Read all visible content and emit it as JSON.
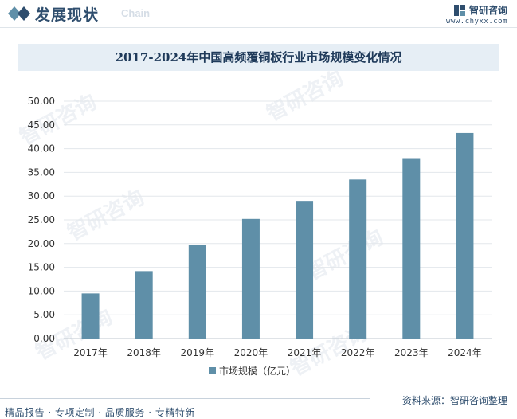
{
  "header": {
    "title": "发展现状",
    "subtitle": "Chain",
    "brand_name": "智研咨询",
    "brand_url": "www.chyxx.com"
  },
  "watermark_text": "智研咨询",
  "chart_data": {
    "type": "bar",
    "title": "2017-2024年中国高频覆铜板行业市场规模变化情况",
    "categories": [
      "2017年",
      "2018年",
      "2019年",
      "2020年",
      "2021年",
      "2022年",
      "2023年",
      "2024年"
    ],
    "series": [
      {
        "name": "市场规模（亿元）",
        "values": [
          9.5,
          14.2,
          19.7,
          25.2,
          29.0,
          33.5,
          38.0,
          43.3
        ],
        "color": "#5f8fa8"
      }
    ],
    "yticks": [
      "0.00",
      "5.00",
      "10.00",
      "15.00",
      "20.00",
      "25.00",
      "30.00",
      "35.00",
      "40.00",
      "45.00",
      "50.00"
    ],
    "ylim": [
      0,
      50
    ],
    "grid": true,
    "legend_position": "bottom"
  },
  "footer": {
    "source": "资料来源：智研咨询整理",
    "slogan": "精品报告 · 专项定制 · 品质服务 · 专精特新"
  }
}
